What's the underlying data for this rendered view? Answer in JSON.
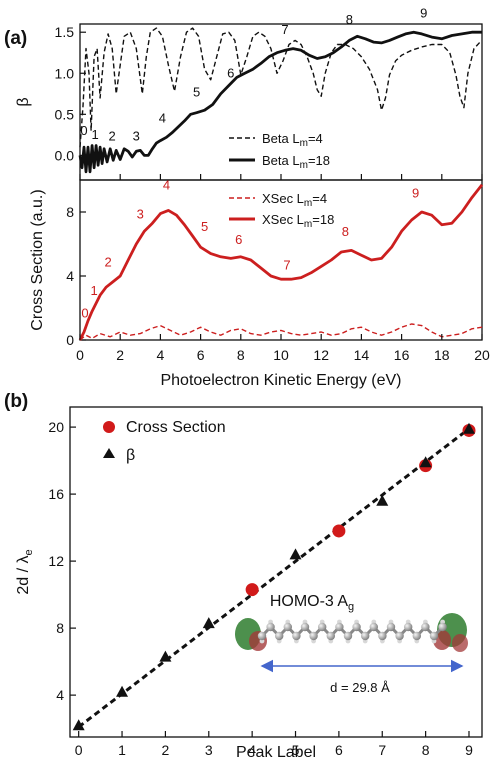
{
  "chart_data": [
    {
      "panel_label": "(a)",
      "type": "line",
      "xlabel": "Photoelectron Kinetic Energy (eV)",
      "xlim": [
        0,
        20
      ],
      "xticks": [
        0,
        2,
        4,
        6,
        8,
        10,
        12,
        14,
        16,
        18,
        20
      ],
      "subplots": [
        {
          "ylabel": "β",
          "ylim": [
            -0.3,
            1.6
          ],
          "yticks": [
            0.0,
            0.5,
            1.0,
            1.5
          ],
          "legend": "bottom-right",
          "series": [
            {
              "name": "Beta L",
              "name_sub": "m",
              "name_suffix": "=4",
              "color": "#111111",
              "style": "dashed",
              "x": [
                0.0,
                0.15,
                0.3,
                0.45,
                0.55,
                0.7,
                0.85,
                1.0,
                1.2,
                1.4,
                1.6,
                1.8,
                2.0,
                2.2,
                2.5,
                2.8,
                3.1,
                3.3,
                3.5,
                3.8,
                4.1,
                4.4,
                4.7,
                5.0,
                5.3,
                5.6,
                5.9,
                6.2,
                6.5,
                6.8,
                7.1,
                7.4,
                7.7,
                8.0,
                8.3,
                8.6,
                8.9,
                9.2,
                9.5,
                9.8,
                10.1,
                10.4,
                10.7,
                11.0,
                11.3,
                11.6,
                11.8,
                12.0,
                12.2,
                12.5,
                12.8,
                13.2,
                13.6,
                14.0,
                14.4,
                14.8,
                15.0,
                15.2,
                15.4,
                15.7,
                16.0,
                16.5,
                17.0,
                17.5,
                18.0,
                18.4,
                18.7,
                18.9,
                19.1,
                19.3,
                19.6,
                19.9,
                20.0
              ],
              "y": [
                0.1,
                0.6,
                1.3,
                1.0,
                0.3,
                1.2,
                1.3,
                0.7,
                1.25,
                1.48,
                1.3,
                0.75,
                1.1,
                1.45,
                1.5,
                1.3,
                0.75,
                1.2,
                1.5,
                1.55,
                1.45,
                1.1,
                0.78,
                1.2,
                1.5,
                1.55,
                1.45,
                1.05,
                0.92,
                1.2,
                1.48,
                1.5,
                1.4,
                0.98,
                1.2,
                1.45,
                1.5,
                1.45,
                1.3,
                1.0,
                1.15,
                1.35,
                1.4,
                1.35,
                1.2,
                1.0,
                0.8,
                0.72,
                1.0,
                1.25,
                1.35,
                1.35,
                1.3,
                1.2,
                1.05,
                0.8,
                0.55,
                0.7,
                0.98,
                1.15,
                1.22,
                1.28,
                1.32,
                1.35,
                1.35,
                1.25,
                0.98,
                0.72,
                0.58,
                1.0,
                1.3,
                1.38,
                1.4
              ]
            },
            {
              "name": "Beta L",
              "name_sub": "m",
              "name_suffix": "=18",
              "color": "#111111",
              "style": "solid",
              "x": [
                0.0,
                0.1,
                0.2,
                0.3,
                0.4,
                0.5,
                0.6,
                0.7,
                0.8,
                0.9,
                1.0,
                1.1,
                1.2,
                1.35,
                1.5,
                1.65,
                1.8,
                2.0,
                2.2,
                2.4,
                2.6,
                2.8,
                3.0,
                3.2,
                3.4,
                3.6,
                3.8,
                4.0,
                4.3,
                4.6,
                4.9,
                5.2,
                5.5,
                5.8,
                6.2,
                6.6,
                7.0,
                7.4,
                7.8,
                8.2,
                8.6,
                9.0,
                9.4,
                9.8,
                10.2,
                10.6,
                11.0,
                11.4,
                11.8,
                12.2,
                12.6,
                13.0,
                13.4,
                13.8,
                14.2,
                14.6,
                15.0,
                15.4,
                15.8,
                16.2,
                16.6,
                17.0,
                17.5,
                18.0,
                18.5,
                19.0,
                19.5,
                20.0
              ],
              "y": [
                0.0,
                -0.15,
                0.1,
                -0.2,
                0.1,
                -0.2,
                0.12,
                -0.15,
                0.12,
                -0.12,
                0.1,
                -0.1,
                0.08,
                -0.08,
                0.08,
                -0.06,
                0.06,
                -0.05,
                0.08,
                0.05,
                -0.02,
                0.05,
                0.06,
                0.0,
                0.0,
                0.08,
                0.15,
                0.18,
                0.22,
                0.28,
                0.35,
                0.42,
                0.5,
                0.52,
                0.55,
                0.62,
                0.75,
                0.85,
                0.95,
                1.0,
                1.05,
                1.12,
                1.2,
                1.25,
                1.28,
                1.3,
                1.28,
                1.22,
                1.18,
                1.2,
                1.25,
                1.32,
                1.4,
                1.45,
                1.42,
                1.38,
                1.37,
                1.4,
                1.44,
                1.48,
                1.5,
                1.48,
                1.44,
                1.42,
                1.46,
                1.48,
                1.5,
                1.5
              ]
            }
          ],
          "peak_labels": [
            {
              "label": "0",
              "x": 0.2,
              "y": 0.25
            },
            {
              "label": "1",
              "x": 0.75,
              "y": 0.2
            },
            {
              "label": "2",
              "x": 1.6,
              "y": 0.18
            },
            {
              "label": "3",
              "x": 2.8,
              "y": 0.18
            },
            {
              "label": "4",
              "x": 4.1,
              "y": 0.4
            },
            {
              "label": "5",
              "x": 5.8,
              "y": 0.72
            },
            {
              "label": "6",
              "x": 7.5,
              "y": 0.95
            },
            {
              "label": "7",
              "x": 10.2,
              "y": 1.48
            },
            {
              "label": "8",
              "x": 13.4,
              "y": 1.6
            },
            {
              "label": "9",
              "x": 17.1,
              "y": 1.68
            }
          ]
        },
        {
          "ylabel": "Cross Section (a.u.)",
          "ylim": [
            0,
            10
          ],
          "yticks": [
            0,
            4,
            8
          ],
          "legend": "top-right",
          "series": [
            {
              "name": "XSec L",
              "name_sub": "m",
              "name_suffix": "=4",
              "color": "#cc1f1f",
              "style": "dashed",
              "x": [
                0.0,
                0.3,
                0.6,
                1.0,
                1.5,
                2.0,
                2.5,
                3.0,
                3.5,
                4.0,
                4.5,
                5.0,
                5.5,
                6.0,
                6.5,
                7.0,
                7.5,
                8.0,
                8.5,
                9.0,
                9.5,
                10.0,
                10.5,
                11.0,
                11.5,
                12.0,
                12.5,
                13.0,
                13.5,
                14.0,
                14.5,
                15.0,
                15.5,
                16.0,
                16.5,
                17.0,
                17.5,
                18.0,
                18.5,
                19.0,
                19.5,
                20.0
              ],
              "y": [
                0.0,
                0.3,
                0.1,
                0.4,
                0.2,
                0.5,
                0.3,
                0.4,
                0.7,
                0.9,
                0.6,
                0.3,
                0.5,
                0.8,
                0.5,
                0.3,
                0.6,
                0.7,
                0.4,
                0.3,
                0.5,
                0.6,
                0.4,
                0.3,
                0.4,
                0.5,
                0.3,
                0.4,
                0.7,
                0.8,
                0.5,
                0.3,
                0.5,
                0.8,
                1.0,
                0.9,
                0.5,
                0.2,
                0.3,
                0.4,
                0.7,
                0.8
              ]
            },
            {
              "name": "XSec L",
              "name_sub": "m",
              "name_suffix": "=18",
              "color": "#cc1f1f",
              "style": "solid",
              "x": [
                0.0,
                0.2,
                0.4,
                0.6,
                0.8,
                1.0,
                1.3,
                1.6,
                2.0,
                2.4,
                2.8,
                3.2,
                3.6,
                4.0,
                4.4,
                4.8,
                5.2,
                5.6,
                6.0,
                6.5,
                7.0,
                7.5,
                8.0,
                8.5,
                9.0,
                9.5,
                10.0,
                10.5,
                11.0,
                11.5,
                12.0,
                12.5,
                13.0,
                13.5,
                14.0,
                14.5,
                15.0,
                15.5,
                16.0,
                16.5,
                17.0,
                17.5,
                18.0,
                18.5,
                19.0,
                19.5,
                20.0
              ],
              "y": [
                0.0,
                0.5,
                1.2,
                1.8,
                2.3,
                2.8,
                3.3,
                3.6,
                4.0,
                5.0,
                6.0,
                6.8,
                7.3,
                7.9,
                8.1,
                7.8,
                7.2,
                6.5,
                5.8,
                5.4,
                5.2,
                5.1,
                5.2,
                5.0,
                4.5,
                4.0,
                3.8,
                3.8,
                3.9,
                4.2,
                4.6,
                5.0,
                5.5,
                5.6,
                5.3,
                5.0,
                5.1,
                5.8,
                6.8,
                7.5,
                8.0,
                7.8,
                7.2,
                7.3,
                8.0,
                8.9,
                9.7
              ]
            }
          ],
          "peak_labels": [
            {
              "label": "0",
              "x": 0.25,
              "y": 1.4
            },
            {
              "label": "1",
              "x": 0.7,
              "y": 2.8
            },
            {
              "label": "2",
              "x": 1.4,
              "y": 4.6
            },
            {
              "label": "3",
              "x": 3.0,
              "y": 7.6
            },
            {
              "label": "4",
              "x": 4.3,
              "y": 9.4
            },
            {
              "label": "5",
              "x": 6.2,
              "y": 6.8
            },
            {
              "label": "6",
              "x": 7.9,
              "y": 6.0
            },
            {
              "label": "7",
              "x": 10.3,
              "y": 4.4
            },
            {
              "label": "8",
              "x": 13.2,
              "y": 6.5
            },
            {
              "label": "9",
              "x": 16.7,
              "y": 8.9
            }
          ]
        }
      ]
    },
    {
      "panel_label": "(b)",
      "type": "scatter",
      "xlabel": "Peak Label",
      "ylabel": "2d / λ",
      "ylabel_sub": "e",
      "xlim": [
        -0.2,
        9.3
      ],
      "ylim": [
        1.5,
        21.2
      ],
      "xticks": [
        0,
        1,
        2,
        3,
        4,
        5,
        6,
        7,
        8,
        9
      ],
      "yticks": [
        4,
        8,
        12,
        16,
        20
      ],
      "legend": "top-left",
      "series": [
        {
          "name": "Cross Section",
          "marker": "circle",
          "color": "#d11a1a",
          "x": [
            4,
            6,
            8,
            9
          ],
          "y": [
            10.3,
            13.8,
            17.7,
            19.8
          ]
        },
        {
          "name": "β",
          "marker": "triangle",
          "color": "#111111",
          "x": [
            0,
            1,
            2,
            3,
            5,
            7,
            8,
            9
          ],
          "y": [
            2.2,
            4.2,
            6.3,
            8.3,
            12.4,
            15.6,
            17.9,
            19.9
          ]
        }
      ],
      "fit_line": {
        "x": [
          0,
          9.05
        ],
        "y": [
          2.1,
          20.0
        ],
        "style": "dashed",
        "color": "#111111"
      },
      "inset": {
        "title": "HOMO-3 A",
        "title_sub": "g",
        "dimension_label": "d = 29.8 Å",
        "arrow_color": "#4466cc"
      }
    }
  ]
}
